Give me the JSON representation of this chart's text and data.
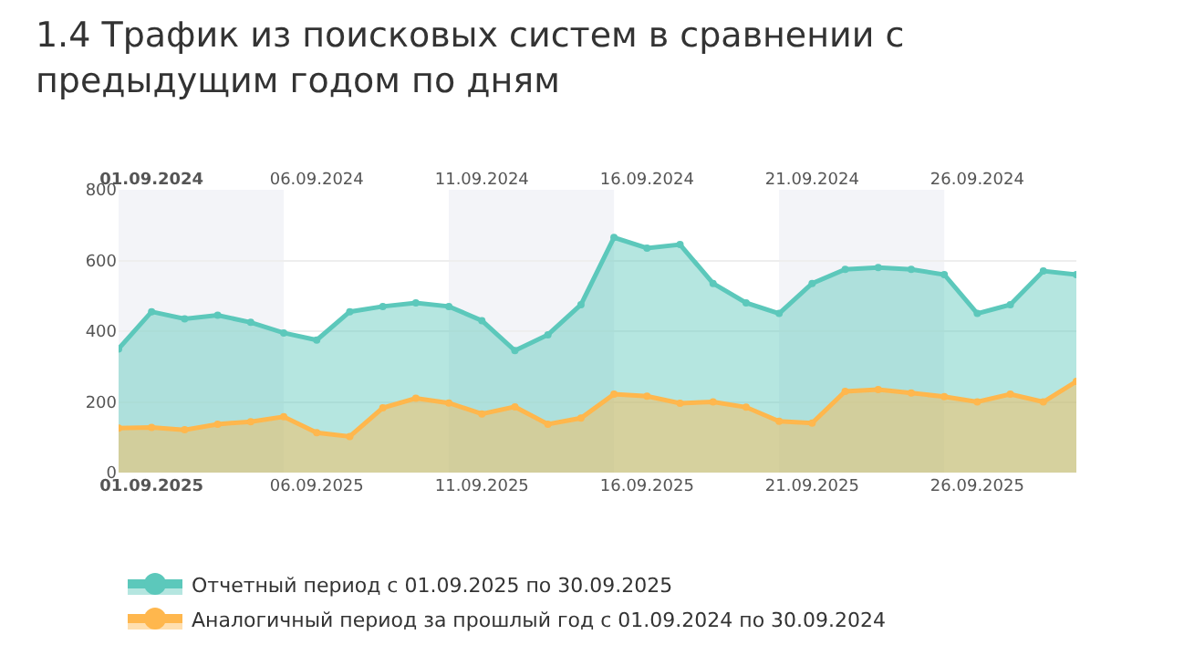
{
  "chart_data": {
    "type": "area",
    "title": "1.4 Трафик из поисковых систем в сравнении с предыдущим годом по дням",
    "x": [
      "2025-09-01",
      "2025-09-02",
      "2025-09-03",
      "2025-09-04",
      "2025-09-05",
      "2025-09-06",
      "2025-09-07",
      "2025-09-08",
      "2025-09-09",
      "2025-09-10",
      "2025-09-11",
      "2025-09-12",
      "2025-09-13",
      "2025-09-14",
      "2025-09-15",
      "2025-09-16",
      "2025-09-17",
      "2025-09-18",
      "2025-09-19",
      "2025-09-20",
      "2025-09-21",
      "2025-09-22",
      "2025-09-23",
      "2025-09-24",
      "2025-09-25",
      "2025-09-26",
      "2025-09-27",
      "2025-09-28",
      "2025-09-29",
      "2025-09-30"
    ],
    "series": [
      {
        "name": "Отчетный период с 01.09.2025 по 30.09.2025",
        "color": "#5cc8bb",
        "values": [
          350,
          455,
          435,
          445,
          425,
          395,
          375,
          455,
          470,
          480,
          470,
          430,
          345,
          390,
          475,
          665,
          635,
          645,
          535,
          480,
          450,
          535,
          575,
          580,
          575,
          560,
          450,
          475,
          570,
          560
        ]
      },
      {
        "name": "Аналогичный период за прошлый год с 01.09.2024 по 30.09.2024",
        "color": "#ffb74d",
        "values": [
          126,
          128,
          121,
          137,
          144,
          158,
          113,
          102,
          183,
          210,
          197,
          166,
          186,
          137,
          154,
          222,
          216,
          196,
          200,
          185,
          145,
          140,
          230,
          235,
          225,
          215,
          200,
          222,
          200,
          258
        ]
      }
    ],
    "xlim": [
      "2025-09-01",
      "2025-09-30"
    ],
    "xticks": [
      {
        "value": "2025-09-02",
        "label": "01.09.2025"
      },
      {
        "value": "2025-09-07",
        "label": "06.09.2025"
      },
      {
        "value": "2025-09-12",
        "label": "11.09.2025"
      },
      {
        "value": "2025-09-17",
        "label": "16.09.2025"
      },
      {
        "value": "2025-09-22",
        "label": "21.09.2025"
      },
      {
        "value": "2025-09-27",
        "label": "26.09.2025"
      }
    ],
    "x2lim": [
      "2024-09-01",
      "2024-09-30"
    ],
    "x2ticks": [
      {
        "value": "2024-09-02",
        "label": "01.09.2024"
      },
      {
        "value": "2024-09-07",
        "label": "06.09.2024"
      },
      {
        "value": "2024-09-12",
        "label": "11.09.2024"
      },
      {
        "value": "2024-09-17",
        "label": "16.09.2024"
      },
      {
        "value": "2024-09-22",
        "label": "21.09.2024"
      },
      {
        "value": "2024-09-27",
        "label": "26.09.2024"
      }
    ],
    "ylim": [
      0,
      800
    ],
    "yticks": [
      0,
      200,
      400,
      600,
      800
    ],
    "bands": [
      {
        "axis": "x",
        "from": "2025-09-01",
        "to": "2025-09-06",
        "color": "#f3f4f8"
      },
      {
        "axis": "x",
        "from": "2025-09-11",
        "to": "2025-09-16",
        "color": "#f3f4f8"
      },
      {
        "axis": "x",
        "from": "2025-09-21",
        "to": "2025-09-26",
        "color": "#f3f4f8"
      }
    ],
    "grid": "y",
    "legend": "bottom left",
    "marker": "circle",
    "line_style": "solid"
  }
}
